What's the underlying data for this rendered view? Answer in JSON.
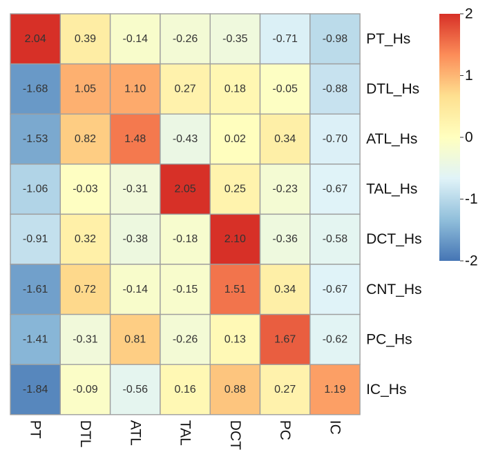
{
  "chart_data": {
    "type": "heatmap",
    "title": "",
    "xlabel": "",
    "ylabel": "",
    "rows": [
      "PT_Hs",
      "DTL_Hs",
      "ATL_Hs",
      "TAL_Hs",
      "DCT_Hs",
      "CNT_Hs",
      "PC_Hs",
      "IC_Hs"
    ],
    "columns": [
      "PT",
      "DTL",
      "ATL",
      "TAL",
      "DCT",
      "PC",
      "IC"
    ],
    "values": [
      [
        2.04,
        0.39,
        -0.14,
        -0.26,
        -0.35,
        -0.71,
        -0.98
      ],
      [
        -1.68,
        1.05,
        1.1,
        0.27,
        0.18,
        -0.05,
        -0.88
      ],
      [
        -1.53,
        0.82,
        1.48,
        -0.43,
        0.02,
        0.34,
        -0.7
      ],
      [
        -1.06,
        -0.03,
        -0.31,
        2.05,
        0.25,
        -0.23,
        -0.67
      ],
      [
        -0.91,
        0.32,
        -0.38,
        -0.18,
        2.1,
        -0.36,
        -0.58
      ],
      [
        -1.61,
        0.72,
        -0.14,
        -0.15,
        1.51,
        0.34,
        -0.67
      ],
      [
        -1.41,
        -0.31,
        0.81,
        -0.26,
        0.13,
        1.67,
        -0.62
      ],
      [
        -1.84,
        -0.09,
        -0.56,
        0.16,
        0.88,
        0.27,
        1.19
      ]
    ],
    "value_labels": [
      [
        "2.04",
        "0.39",
        "-0.14",
        "-0.26",
        "-0.35",
        "-0.71",
        "-0.98"
      ],
      [
        "-1.68",
        "1.05",
        "1.10",
        "0.27",
        "0.18",
        "-0.05",
        "-0.88"
      ],
      [
        "-1.53",
        "0.82",
        "1.48",
        "-0.43",
        "0.02",
        "0.34",
        "-0.70"
      ],
      [
        "-1.06",
        "-0.03",
        "-0.31",
        "2.05",
        "0.25",
        "-0.23",
        "-0.67"
      ],
      [
        "-0.91",
        "0.32",
        "-0.38",
        "-0.18",
        "2.10",
        "-0.36",
        "-0.58"
      ],
      [
        "-1.61",
        "0.72",
        "-0.14",
        "-0.15",
        "1.51",
        "0.34",
        "-0.67"
      ],
      [
        "-1.41",
        "-0.31",
        "0.81",
        "-0.26",
        "0.13",
        "1.67",
        "-0.62"
      ],
      [
        "-1.84",
        "-0.09",
        "-0.56",
        "0.16",
        "0.88",
        "0.27",
        "1.19"
      ]
    ],
    "color_scale": {
      "min": -2,
      "max": 2,
      "stops": [
        "#4575b4",
        "#91bfdb",
        "#e0f3f8",
        "#ffffbf",
        "#fee090",
        "#fc8d59",
        "#d73027"
      ],
      "cell_border_color": "#9e9e9e",
      "tick_values": [
        2,
        1,
        0,
        -1,
        -2
      ],
      "tick_labels": [
        "2",
        "1",
        "0",
        "-1",
        "-2"
      ],
      "legend_position": "right"
    }
  }
}
